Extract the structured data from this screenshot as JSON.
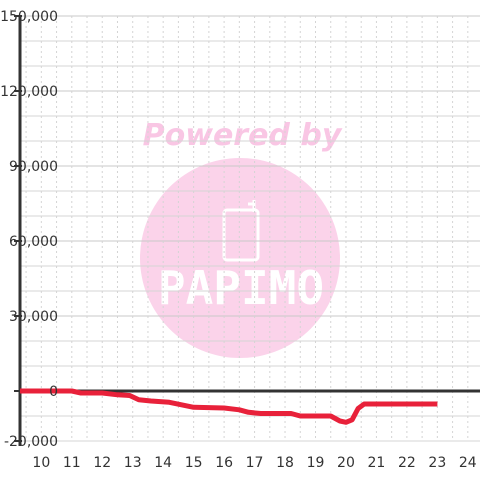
{
  "chart_data": {
    "type": "line",
    "title": "",
    "xlabel": "",
    "ylabel": "",
    "xlim": [
      9.3,
      24.4
    ],
    "ylim": [
      -20000,
      150000
    ],
    "x_ticks": [
      10,
      11,
      12,
      13,
      14,
      15,
      16,
      17,
      18,
      19,
      20,
      21,
      22,
      23,
      24
    ],
    "y_ticks": [
      -20000,
      0,
      30000,
      60000,
      90000,
      120000,
      150000
    ],
    "x_tick_labels": [
      "10",
      "11",
      "12",
      "13",
      "14",
      "15",
      "16",
      "17",
      "18",
      "19",
      "20",
      "21",
      "22",
      "23",
      "24"
    ],
    "y_tick_labels": [
      "-20,000",
      "0",
      "30,000",
      "60,000",
      "90,000",
      "120,000",
      "150,000"
    ],
    "grid": true,
    "series": [
      {
        "color": "#e8213a",
        "x": [
          9.3,
          11.0,
          11.3,
          12.0,
          12.5,
          12.9,
          13.2,
          13.6,
          14.2,
          14.6,
          15.0,
          16.0,
          16.5,
          16.8,
          17.2,
          17.6,
          18.2,
          18.5,
          19.0,
          19.5,
          19.8,
          20.0,
          20.2,
          20.4,
          20.6,
          21.0,
          21.5,
          22.0,
          22.5,
          23.0
        ],
        "y": [
          0,
          0,
          -800,
          -800,
          -1500,
          -1800,
          -3500,
          -4000,
          -4500,
          -5500,
          -6500,
          -6800,
          -7500,
          -8500,
          -9000,
          -9000,
          -9000,
          -10000,
          -10000,
          -10000,
          -12000,
          -12500,
          -11500,
          -7000,
          -5200,
          -5200,
          -5200,
          -5200,
          -5200,
          -5200
        ]
      }
    ]
  },
  "watermark": {
    "text": "Powered by",
    "brand": "PAPIMO",
    "text_color": "#f9c6e4",
    "circle_color": "#fbd3ea"
  },
  "colors": {
    "axis": "#333333",
    "grid_major": "#c8c8c8",
    "grid_minor": "#d4d4d4",
    "line": "#e8213a"
  }
}
